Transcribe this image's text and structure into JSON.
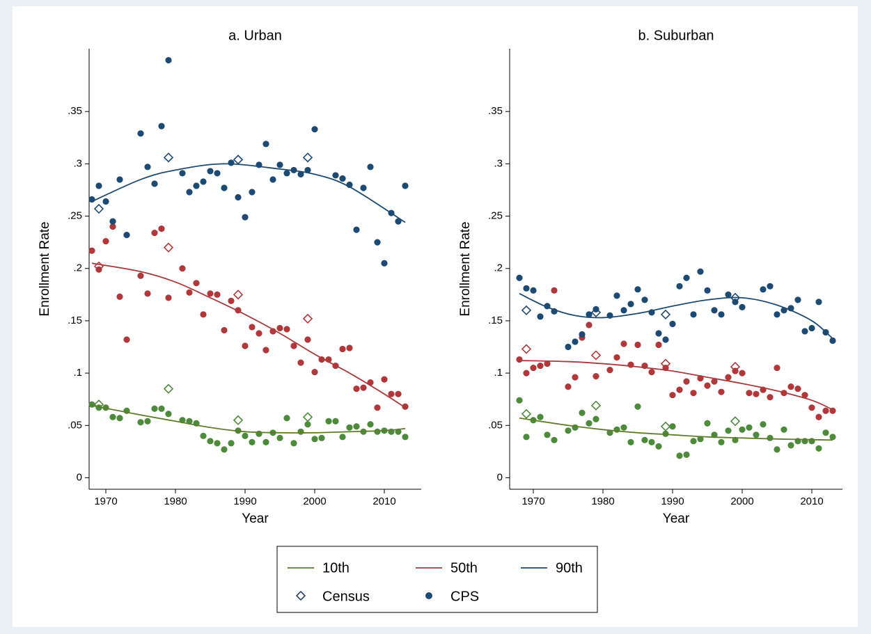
{
  "chart_data": [
    {
      "type": "scatter",
      "title": "a. Urban",
      "xlabel": "Year",
      "ylabel": "Enrollment Rate",
      "xlim": [
        1967.6,
        2015.3
      ],
      "ylim": [
        -0.011,
        0.41
      ],
      "xticks": [
        1970,
        1980,
        1990,
        2000,
        2010
      ],
      "yticks": [
        0,
        {
          "value": 0.05,
          "label": ".05"
        },
        {
          "value": 0.1,
          "label": ".1"
        },
        {
          "value": 0.15,
          "label": ".15"
        },
        {
          "value": 0.2,
          "label": ".2"
        },
        {
          "value": 0.25,
          "label": ".25"
        },
        {
          "value": 0.3,
          "label": ".3"
        },
        {
          "value": 0.35,
          "label": ".35"
        }
      ],
      "series": [
        {
          "name": "10th",
          "color": "#5e7d2c",
          "marker_color": "#4e8a3c",
          "x": [
            1968,
            1969,
            1970,
            1971,
            1972,
            1973,
            1975,
            1976,
            1977,
            1978,
            1979,
            1981,
            1982,
            1983,
            1984,
            1985,
            1986,
            1987,
            1988,
            1989,
            1990,
            1991,
            1992,
            1993,
            1994,
            1995,
            1996,
            1997,
            1998,
            1999,
            2000,
            2001,
            2002,
            2003,
            2004,
            2005,
            2006,
            2007,
            2008,
            2009,
            2010,
            2011,
            2012,
            2013
          ],
          "values": [
            0.07,
            0.067,
            0.067,
            0.058,
            0.057,
            0.064,
            0.053,
            0.054,
            0.066,
            0.066,
            0.061,
            0.055,
            0.054,
            0.052,
            0.04,
            0.035,
            0.033,
            0.027,
            0.033,
            0.045,
            0.04,
            0.034,
            0.042,
            0.034,
            0.043,
            0.038,
            0.057,
            0.033,
            0.044,
            0.051,
            0.037,
            0.038,
            0.054,
            0.054,
            0.039,
            0.048,
            0.049,
            0.044,
            0.051,
            0.044,
            0.045,
            0.044,
            0.044,
            0.039
          ],
          "census_x": [
            1969,
            1979,
            1989,
            1999
          ],
          "census_values": [
            0.07,
            0.085,
            0.055,
            0.058
          ],
          "fit_x": [
            1968,
            1975,
            1980,
            1985,
            1990,
            1995,
            2000,
            2005,
            2010,
            2013
          ],
          "fit_values": [
            0.069,
            0.06,
            0.054,
            0.048,
            0.044,
            0.043,
            0.043,
            0.044,
            0.045,
            0.047
          ]
        },
        {
          "name": "50th",
          "color": "#a83a3c",
          "marker_color": "#b0383a",
          "x": [
            1968,
            1969,
            1970,
            1971,
            1972,
            1973,
            1975,
            1976,
            1977,
            1978,
            1979,
            1981,
            1982,
            1983,
            1984,
            1985,
            1986,
            1987,
            1988,
            1989,
            1990,
            1991,
            1992,
            1993,
            1994,
            1995,
            1996,
            1997,
            1998,
            1999,
            2000,
            2001,
            2002,
            2003,
            2004,
            2005,
            2006,
            2007,
            2008,
            2009,
            2010,
            2011,
            2012,
            2013
          ],
          "values": [
            0.217,
            0.199,
            0.226,
            0.24,
            0.173,
            0.132,
            0.193,
            0.176,
            0.234,
            0.238,
            0.172,
            0.2,
            0.177,
            0.186,
            0.156,
            0.176,
            0.175,
            0.141,
            0.169,
            0.16,
            0.126,
            0.144,
            0.138,
            0.122,
            0.14,
            0.143,
            0.142,
            0.126,
            0.11,
            0.132,
            0.101,
            0.113,
            0.113,
            0.107,
            0.123,
            0.124,
            0.085,
            0.086,
            0.091,
            0.067,
            0.094,
            0.08,
            0.08,
            0.068
          ],
          "census_x": [
            1969,
            1979,
            1989,
            1999
          ],
          "census_values": [
            0.202,
            0.22,
            0.175,
            0.152
          ],
          "fit_x": [
            1968,
            1975,
            1980,
            1985,
            1990,
            1995,
            2000,
            2005,
            2010,
            2013
          ],
          "fit_values": [
            0.205,
            0.197,
            0.187,
            0.172,
            0.156,
            0.138,
            0.118,
            0.1,
            0.08,
            0.067
          ]
        },
        {
          "name": "90th",
          "color": "#1d4a72",
          "marker_color": "#1d4a72",
          "x": [
            1968,
            1969,
            1970,
            1971,
            1972,
            1973,
            1975,
            1976,
            1977,
            1978,
            1979,
            1981,
            1982,
            1983,
            1984,
            1985,
            1986,
            1987,
            1988,
            1989,
            1990,
            1991,
            1992,
            1993,
            1994,
            1995,
            1996,
            1997,
            1998,
            1999,
            2000,
            2003,
            2004,
            2005,
            2006,
            2007,
            2008,
            2009,
            2010,
            2011,
            2012,
            2013
          ],
          "values": [
            0.266,
            0.279,
            0.264,
            0.245,
            0.285,
            0.232,
            0.329,
            0.297,
            0.281,
            0.336,
            0.399,
            0.291,
            0.273,
            0.279,
            0.283,
            0.293,
            0.291,
            0.277,
            0.301,
            0.268,
            0.249,
            0.273,
            0.299,
            0.319,
            0.285,
            0.299,
            0.291,
            0.294,
            0.29,
            0.294,
            0.333,
            0.289,
            0.286,
            0.28,
            0.237,
            0.277,
            0.297,
            0.225,
            0.205,
            0.253,
            0.245,
            0.279
          ],
          "census_x": [
            1969,
            1979,
            1989,
            1999
          ],
          "census_values": [
            0.257,
            0.306,
            0.304,
            0.306
          ],
          "fit_x": [
            1968,
            1975,
            1980,
            1987,
            1995,
            2000,
            2005,
            2013
          ],
          "fit_values": [
            0.264,
            0.285,
            0.294,
            0.3,
            0.295,
            0.29,
            0.278,
            0.244
          ]
        }
      ]
    },
    {
      "type": "scatter",
      "title": "b. Suburban",
      "xlabel": "Year",
      "ylabel": "Enrollment Rate",
      "xlim": [
        1966.6,
        2014.4
      ],
      "ylim": [
        -0.011,
        0.41
      ],
      "xticks": [
        1970,
        1980,
        1990,
        2000,
        2010
      ],
      "yticks": [
        0,
        {
          "value": 0.05,
          "label": ".05"
        },
        {
          "value": 0.1,
          "label": ".1"
        },
        {
          "value": 0.15,
          "label": ".15"
        },
        {
          "value": 0.2,
          "label": ".2"
        },
        {
          "value": 0.25,
          "label": ".25"
        },
        {
          "value": 0.3,
          "label": ".3"
        },
        {
          "value": 0.35,
          "label": ".35"
        }
      ],
      "series": [
        {
          "name": "10th",
          "color": "#5e7d2c",
          "marker_color": "#4e8a3c",
          "x": [
            1968,
            1969,
            1970,
            1971,
            1972,
            1973,
            1975,
            1976,
            1977,
            1978,
            1979,
            1981,
            1982,
            1983,
            1984,
            1985,
            1986,
            1987,
            1988,
            1989,
            1990,
            1991,
            1992,
            1993,
            1994,
            1995,
            1996,
            1997,
            1998,
            1999,
            2000,
            2001,
            2002,
            2003,
            2004,
            2005,
            2006,
            2007,
            2008,
            2009,
            2010,
            2011,
            2012,
            2013
          ],
          "values": [
            0.074,
            0.039,
            0.055,
            0.058,
            0.041,
            0.036,
            0.045,
            0.048,
            0.062,
            0.052,
            0.056,
            0.043,
            0.046,
            0.048,
            0.034,
            0.068,
            0.036,
            0.034,
            0.03,
            0.042,
            0.049,
            0.021,
            0.022,
            0.035,
            0.037,
            0.052,
            0.041,
            0.034,
            0.045,
            0.036,
            0.046,
            0.048,
            0.041,
            0.051,
            0.038,
            0.027,
            0.046,
            0.031,
            0.035,
            0.035,
            0.035,
            0.028,
            0.043,
            0.039
          ],
          "census_x": [
            1969,
            1979,
            1989,
            1999
          ],
          "census_values": [
            0.061,
            0.069,
            0.049,
            0.054
          ],
          "fit_x": [
            1968,
            1975,
            1980,
            1985,
            1990,
            1995,
            2000,
            2005,
            2013
          ],
          "fit_values": [
            0.057,
            0.05,
            0.046,
            0.043,
            0.041,
            0.039,
            0.038,
            0.037,
            0.036
          ]
        },
        {
          "name": "50th",
          "color": "#a83a3c",
          "marker_color": "#b0383a",
          "x": [
            1968,
            1969,
            1970,
            1971,
            1972,
            1973,
            1975,
            1976,
            1977,
            1978,
            1979,
            1981,
            1982,
            1983,
            1984,
            1985,
            1986,
            1987,
            1988,
            1989,
            1990,
            1991,
            1992,
            1993,
            1994,
            1995,
            1996,
            1997,
            1998,
            1999,
            2000,
            2001,
            2002,
            2003,
            2004,
            2005,
            2006,
            2007,
            2008,
            2009,
            2010,
            2011,
            2012,
            2013
          ],
          "values": [
            0.113,
            0.1,
            0.105,
            0.107,
            0.109,
            0.179,
            0.087,
            0.096,
            0.134,
            0.146,
            0.097,
            0.103,
            0.115,
            0.128,
            0.108,
            0.127,
            0.107,
            0.101,
            0.127,
            0.105,
            0.079,
            0.084,
            0.092,
            0.081,
            0.095,
            0.088,
            0.092,
            0.082,
            0.096,
            0.102,
            0.1,
            0.081,
            0.08,
            0.084,
            0.077,
            0.105,
            0.081,
            0.087,
            0.085,
            0.079,
            0.067,
            0.058,
            0.064,
            0.064
          ],
          "census_x": [
            1969,
            1979,
            1989,
            1999
          ],
          "census_values": [
            0.123,
            0.117,
            0.109,
            0.106
          ],
          "fit_x": [
            1968,
            1975,
            1980,
            1985,
            1990,
            1995,
            2000,
            2005,
            2010,
            2013
          ],
          "fit_values": [
            0.112,
            0.111,
            0.109,
            0.106,
            0.102,
            0.096,
            0.09,
            0.083,
            0.074,
            0.065
          ]
        },
        {
          "name": "90th",
          "color": "#1d4a72",
          "marker_color": "#1d4a72",
          "x": [
            1968,
            1969,
            1970,
            1971,
            1972,
            1973,
            1975,
            1976,
            1977,
            1978,
            1979,
            1981,
            1982,
            1983,
            1984,
            1985,
            1986,
            1987,
            1988,
            1989,
            1990,
            1991,
            1992,
            1993,
            1994,
            1995,
            1996,
            1997,
            1998,
            1999,
            2000,
            2003,
            2004,
            2005,
            2006,
            2007,
            2008,
            2009,
            2010,
            2011,
            2012,
            2013
          ],
          "values": [
            0.191,
            0.181,
            0.179,
            0.154,
            0.164,
            0.159,
            0.125,
            0.13,
            0.137,
            0.156,
            0.161,
            0.155,
            0.174,
            0.16,
            0.166,
            0.18,
            0.17,
            0.158,
            0.138,
            0.132,
            0.147,
            0.183,
            0.191,
            0.156,
            0.197,
            0.179,
            0.16,
            0.156,
            0.175,
            0.168,
            0.163,
            0.18,
            0.183,
            0.156,
            0.16,
            0.162,
            0.17,
            0.14,
            0.143,
            0.168,
            0.139,
            0.131
          ],
          "census_x": [
            1969,
            1979,
            1989,
            1999
          ],
          "census_values": [
            0.16,
            0.158,
            0.156,
            0.172
          ],
          "fit_x": [
            1968,
            1972,
            1976,
            1980,
            1985,
            1990,
            1995,
            2000,
            2005,
            2010,
            2013
          ],
          "fit_values": [
            0.176,
            0.163,
            0.155,
            0.153,
            0.157,
            0.164,
            0.17,
            0.172,
            0.165,
            0.15,
            0.133
          ]
        }
      ]
    }
  ],
  "legend_markers": [
    "Census",
    "CPS"
  ]
}
